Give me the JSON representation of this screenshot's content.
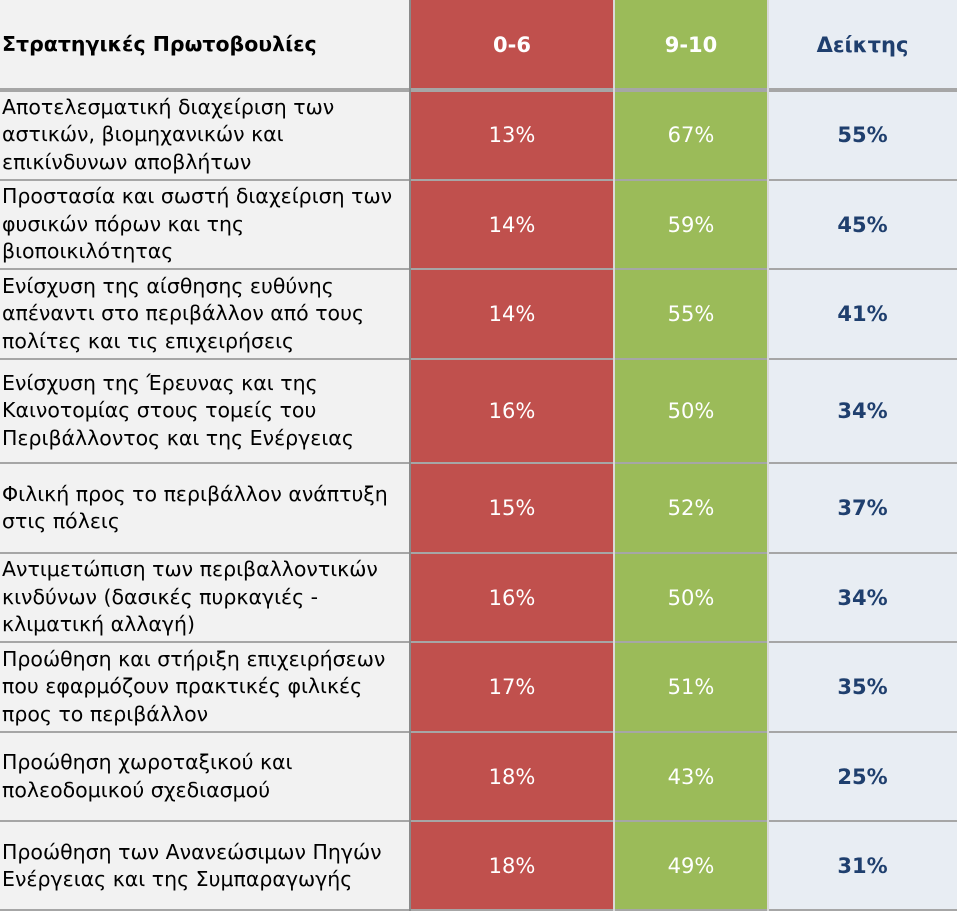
{
  "table": {
    "headers": [
      "Στρατηγικές Πρωτοβουλίες",
      "0-6",
      "9-10",
      "Δείκτης"
    ],
    "rows": [
      {
        "label": "Αποτελεσματική διαχείριση των αστικών, βιομηχανικών και επικίνδυνων αποβλήτων",
        "low": "13%",
        "high": "67%",
        "index": "55%"
      },
      {
        "label": "Προστασία και σωστή διαχείριση των φυσικών πόρων και της βιοποικιλότητας",
        "low": "14%",
        "high": "59%",
        "index": "45%"
      },
      {
        "label": "Ενίσχυση της αίσθησης ευθύνης απέναντι στο περιβάλλον από τους πολίτες και τις επιχειρήσεις",
        "low": "14%",
        "high": "55%",
        "index": "41%"
      },
      {
        "label": "Ενίσχυση της Έρευνας και της Καινοτομίας στους τομείς του Περιβάλλοντος και της Ενέργειας",
        "low": "16%",
        "high": "50%",
        "index": "34%"
      },
      {
        "label": "Φιλική προς το περιβάλλον ανάπτυξη στις πόλεις",
        "low": "15%",
        "high": "52%",
        "index": "37%"
      },
      {
        "label": "Αντιμετώπιση των περιβαλλοντικών κινδύνων (δασικές πυρκαγιές - κλιματική αλλαγή)",
        "low": "16%",
        "high": "50%",
        "index": "34%"
      },
      {
        "label": "Προώθηση και στήριξη επιχειρήσεων που εφαρμόζουν πρακτικές φιλικές προς το περιβάλλον",
        "low": "17%",
        "high": "51%",
        "index": "35%"
      },
      {
        "label": "Προώθηση χωροταξικού και πολεοδομικού σχεδιασμού",
        "low": "18%",
        "high": "43%",
        "index": "25%"
      },
      {
        "label": "Προώθηση των Ανανεώσιμων Πηγών Ενέργειας και της Συμπαραγωγής",
        "low": "18%",
        "high": "49%",
        "index": "31%"
      }
    ]
  },
  "chart_data": {
    "type": "table",
    "columns": [
      "Στρατηγικές Πρωτοβουλίες",
      "0-6",
      "9-10",
      "Δείκτης"
    ],
    "categories": [
      "Αποτελεσματική διαχείριση των αστικών, βιομηχανικών και επικίνδυνων αποβλήτων",
      "Προστασία και σωστή διαχείριση των φυσικών πόρων και της βιοποικιλότητας",
      "Ενίσχυση της αίσθησης ευθύνης απέναντι στο περιβάλλον από τους πολίτες και τις επιχειρήσεις",
      "Ενίσχυση της Έρευνας και της Καινοτομίας στους τομείς του Περιβάλλοντος και της Ενέργειας",
      "Φιλική προς το περιβάλλον ανάπτυξη στις πόλεις",
      "Αντιμετώπιση των περιβαλλοντικών κινδύνων (δασικές πυρκαγιές - κλιματική αλλαγή)",
      "Προώθηση και στήριξη επιχειρήσεων που εφαρμόζουν πρακτικές φιλικές προς το περιβάλλον",
      "Προώθηση χωροταξικού και πολεοδομικού σχεδιασμού",
      "Προώθηση των Ανανεώσιμων Πηγών Ενέργειας και της Συμπαραγωγής"
    ],
    "series": [
      {
        "name": "0-6",
        "values": [
          13,
          14,
          14,
          16,
          15,
          16,
          17,
          18,
          18
        ]
      },
      {
        "name": "9-10",
        "values": [
          67,
          59,
          55,
          50,
          52,
          50,
          51,
          43,
          49
        ]
      },
      {
        "name": "Δείκτης",
        "values": [
          55,
          45,
          41,
          34,
          37,
          34,
          35,
          25,
          31
        ]
      }
    ]
  },
  "colors": {
    "low": "#c0504d",
    "high": "#9bbb59",
    "index_bg": "#e8edf3",
    "index_text": "#1f3f6e",
    "label_bg": "#f2f2f2"
  }
}
